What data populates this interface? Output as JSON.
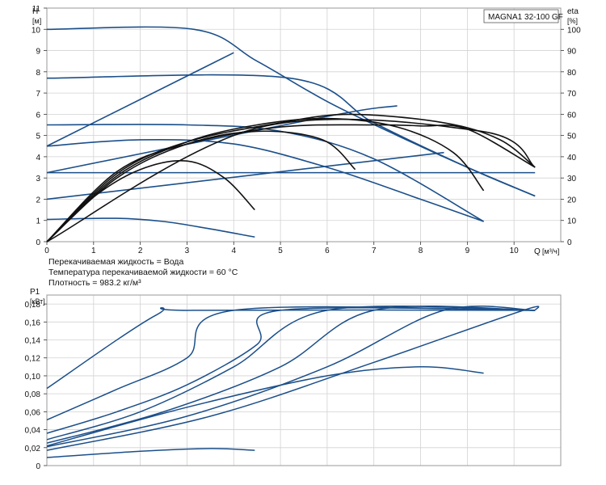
{
  "model_label": "MAGNA1 32-100 GF",
  "info": {
    "liquid": "Перекачиваемая жидкость = Вода",
    "temperature": "Температура перекачиваемой жидкости = 60 °C",
    "density": "Плотность = 983.2 кг/м³"
  },
  "colors": {
    "head_curves": "#1b4f8a",
    "efficiency_curves": "#111111",
    "power_curves": "#1b4f8a",
    "grid": "#d2d2d2"
  },
  "chart_data": [
    {
      "type": "line",
      "ylabel": "H",
      "yunit": "[м]",
      "y2label": "eta",
      "y2unit": "[%]",
      "xlabel": "Q",
      "xunit": "[м³/ч]",
      "xlim": [
        0,
        11
      ],
      "ylim": [
        0,
        11
      ],
      "y2lim": [
        0,
        110
      ],
      "xticks": [
        "0",
        "1",
        "2",
        "3",
        "4",
        "5",
        "6",
        "7",
        "8",
        "9",
        "10"
      ],
      "yticks": [
        "0",
        "1",
        "2",
        "3",
        "4",
        "5",
        "6",
        "7",
        "8",
        "9",
        "10",
        "11"
      ],
      "y2ticks": [
        "0",
        "10",
        "20",
        "30",
        "40",
        "50",
        "60",
        "70",
        "80",
        "90",
        "100"
      ],
      "grid": true,
      "head_series": [
        {
          "x": [
            0,
            3.15,
            4.5,
            6,
            7.5,
            9,
            10.45
          ],
          "y": [
            10,
            10,
            8.5,
            6.6,
            5.0,
            3.5,
            2.15
          ]
        },
        {
          "x": [
            0,
            5.2,
            7,
            9,
            10.45
          ],
          "y": [
            7.7,
            7.7,
            5.6,
            3.5,
            2.15
          ]
        },
        {
          "x": [
            0,
            3,
            5,
            7,
            9.35
          ],
          "y": [
            5.5,
            5.5,
            5.2,
            3.9,
            0.95
          ]
        },
        {
          "x": [
            0,
            2,
            4,
            6,
            8,
            9.35
          ],
          "y": [
            4.5,
            4.8,
            4.6,
            3.5,
            2.0,
            0.95
          ]
        },
        {
          "x": [
            0,
            1.5,
            2.5,
            3.5,
            4.45
          ],
          "y": [
            1.05,
            1.1,
            0.95,
            0.6,
            0.22
          ]
        },
        {
          "x": [
            0,
            10.45
          ],
          "y": [
            3.25,
            3.25
          ]
        },
        {
          "x": [
            0,
            4.0
          ],
          "y": [
            4.5,
            8.9
          ]
        },
        {
          "x": [
            0,
            6,
            7.5
          ],
          "y": [
            3.25,
            5.9,
            6.4
          ]
        },
        {
          "x": [
            0,
            8.5
          ],
          "y": [
            2.0,
            4.2
          ]
        }
      ],
      "efficiency_series": [
        {
          "x": [
            0,
            1.5,
            3,
            5,
            7,
            8,
            9,
            10.45
          ],
          "y": [
            0,
            33,
            46,
            54,
            55,
            54.5,
            53,
            35
          ]
        },
        {
          "x": [
            0,
            1.5,
            3,
            5,
            6.5,
            8.5,
            9.7,
            10.45
          ],
          "y": [
            0,
            32,
            47,
            56,
            60,
            56,
            48,
            35
          ]
        },
        {
          "x": [
            0,
            1.5,
            3,
            4.5,
            6,
            7.5,
            8.7,
            9.35
          ],
          "y": [
            0,
            31,
            47,
            55,
            58,
            54,
            42,
            24
          ]
        },
        {
          "x": [
            0,
            1.5,
            3,
            4.5,
            5.9,
            6.6
          ],
          "y": [
            0,
            30,
            46,
            52,
            48,
            34
          ]
        },
        {
          "x": [
            0,
            1,
            2,
            3,
            3.8,
            4.45
          ],
          "y": [
            0,
            21,
            34,
            38,
            30,
            15
          ]
        },
        {
          "x": [
            0,
            4.5,
            9.3,
            10.45
          ],
          "y": [
            0,
            53.5,
            52,
            35
          ]
        }
      ]
    },
    {
      "type": "line",
      "ylabel": "P1",
      "yunit": "[кВт]",
      "xlim": [
        0,
        11
      ],
      "ylim": [
        0,
        0.19
      ],
      "yticks": [
        "0",
        "0,02",
        "0,04",
        "0,06",
        "0,08",
        "0,10",
        "0,12",
        "0,14",
        "0,16",
        "0,18"
      ],
      "grid": true,
      "power_series": [
        {
          "x": [
            0,
            2.35,
            3.15,
            10.45
          ],
          "y": [
            0.086,
            0.168,
            0.173,
            0.173
          ]
        },
        {
          "x": [
            0,
            1.5,
            3,
            4.0,
            10.45
          ],
          "y": [
            0.051,
            0.085,
            0.12,
            0.173,
            0.173
          ]
        },
        {
          "x": [
            0,
            1.5,
            3,
            4.5,
            5.0,
            10.45
          ],
          "y": [
            0.036,
            0.06,
            0.09,
            0.135,
            0.173,
            0.173
          ]
        },
        {
          "x": [
            0,
            2,
            4,
            6,
            10.45
          ],
          "y": [
            0.029,
            0.06,
            0.11,
            0.173,
            0.173
          ]
        },
        {
          "x": [
            0,
            2.5,
            5,
            7,
            10.45
          ],
          "y": [
            0.025,
            0.06,
            0.11,
            0.173,
            0.173
          ]
        },
        {
          "x": [
            0,
            3,
            6,
            8.5,
            10.45
          ],
          "y": [
            0.021,
            0.055,
            0.11,
            0.173,
            0.173
          ]
        },
        {
          "x": [
            0,
            3.5,
            7,
            10.2,
            10.45
          ],
          "y": [
            0.017,
            0.055,
            0.115,
            0.173,
            0.173
          ]
        },
        {
          "x": [
            0,
            3,
            6,
            8,
            9.35
          ],
          "y": [
            0.022,
            0.065,
            0.1,
            0.11,
            0.103
          ]
        },
        {
          "x": [
            0,
            2,
            3.5,
            4.45
          ],
          "y": [
            0.009,
            0.016,
            0.019,
            0.017
          ]
        }
      ]
    }
  ]
}
